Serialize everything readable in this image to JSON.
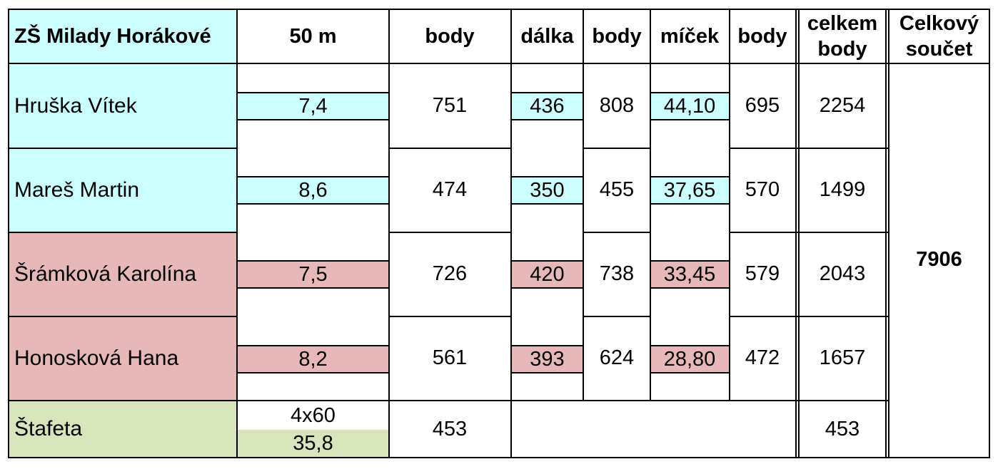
{
  "header": {
    "school": "ZŠ Milady Horákové",
    "col_50m": "50 m",
    "col_body1": "body",
    "col_dalka": "dálka",
    "col_body2": "body",
    "col_micek": "míček",
    "col_body3": "body",
    "col_celkem": "celkem body",
    "col_soucet": "Celkový součet"
  },
  "rows": [
    {
      "name": "Hruška Vítek",
      "m50": "7,4",
      "body1": "751",
      "dalka": "436",
      "body2": "808",
      "micek": "44,10",
      "body3": "695",
      "celkem": "2254"
    },
    {
      "name": "Mareš Martin",
      "m50": "8,6",
      "body1": "474",
      "dalka": "350",
      "body2": "455",
      "micek": "37,65",
      "body3": "570",
      "celkem": "1499"
    },
    {
      "name": "Šrámková Karolína",
      "m50": "7,5",
      "body1": "726",
      "dalka": "420",
      "body2": "738",
      "micek": "33,45",
      "body3": "579",
      "celkem": "2043"
    },
    {
      "name": "Honosková Hana",
      "m50": "8,2",
      "body1": "561",
      "dalka": "393",
      "body2": "624",
      "micek": "28,80",
      "body3": "472",
      "celkem": "1657"
    }
  ],
  "relay": {
    "name": "Štafeta",
    "label": "4x60",
    "time": "35,8",
    "body": "453",
    "celkem": "453"
  },
  "total": "7906",
  "colors": {
    "boys": "#ccffff",
    "girls": "#e6b8b7",
    "relay": "#d8e4bc"
  }
}
